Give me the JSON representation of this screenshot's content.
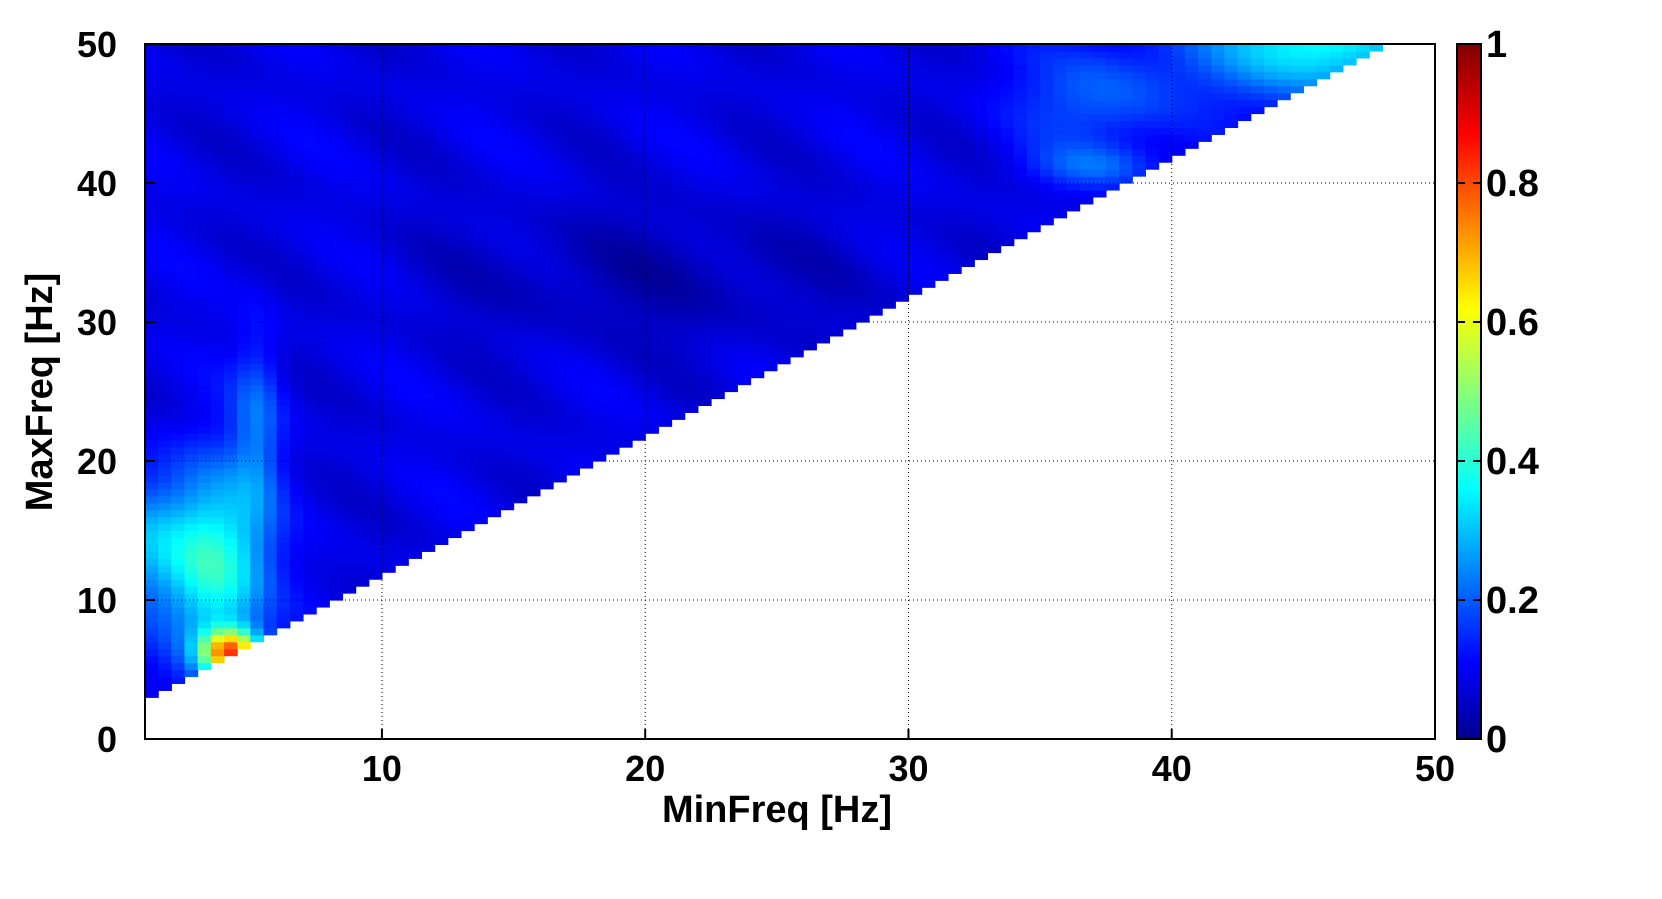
{
  "chart_data": {
    "type": "heatmap",
    "title": "",
    "xlabel": "MinFreq [Hz]",
    "ylabel": "MaxFreq [Hz]",
    "xlim": [
      1,
      50
    ],
    "ylim": [
      0,
      50
    ],
    "x_ticks": [
      10,
      20,
      30,
      40,
      50
    ],
    "y_ticks": [
      0,
      10,
      20,
      30,
      40,
      50
    ],
    "grid": true,
    "colormap": "jet",
    "colorbar": {
      "range": [
        0,
        1
      ],
      "ticks": [
        0,
        0.2,
        0.4,
        0.6,
        0.8,
        1
      ],
      "tick_labels": [
        "0",
        "0.2",
        "0.4",
        "0.6",
        "0.8",
        "1"
      ],
      "placement": "right"
    },
    "domain": "values defined only where MaxFreq > MinFreq + 1 (upper-left triangle); lower-right region empty",
    "features": [
      {
        "description": "peak",
        "minfreq": 4,
        "maxfreq": 6,
        "value": 0.9
      },
      {
        "description": "elevated band at low MinFreq",
        "minfreq_range": [
          1,
          5
        ],
        "maxfreq_range": [
          5,
          20
        ],
        "value_range": [
          0.3,
          0.6
        ]
      },
      {
        "description": "high values at top-right corner",
        "minfreq_range": [
          40,
          48
        ],
        "maxfreq_range": [
          44,
          50
        ],
        "value_range": [
          0.35,
          0.5
        ]
      },
      {
        "description": "background",
        "value_range": [
          0.05,
          0.15
        ]
      }
    ]
  }
}
